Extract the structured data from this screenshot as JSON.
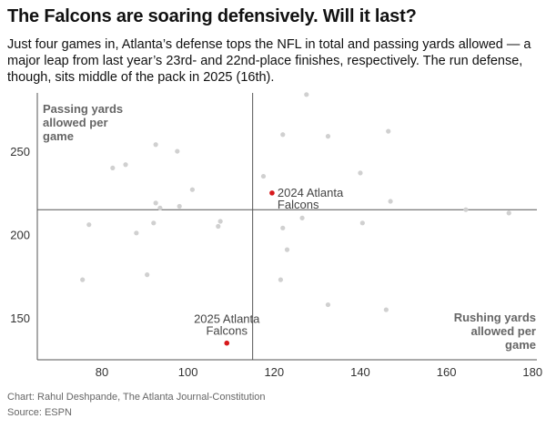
{
  "header": {
    "title": "The Falcons are soaring defensively. Will it last?",
    "subtitle": "Just four games in, Atlanta’s defense tops the NFL in total and passing yards allowed — a major leap from last year’s 23rd- and 22nd-place finishes, respectively. The run defense, though, sits middle of the pack in 2025 (16th)."
  },
  "footer": {
    "credit": "Chart: Rahul Deshpande, The Atlanta Journal-Constitution",
    "source": "Source: ESPN"
  },
  "chart_data": {
    "type": "scatter",
    "xlabel": "Rushing yards allowed per game",
    "ylabel": "Passing yards allowed per game",
    "xlabel_lines": [
      "Rushing yards",
      "allowed per",
      "game"
    ],
    "ylabel_lines": [
      "Passing yards",
      "allowed per",
      "game"
    ],
    "xlim": [
      65,
      181
    ],
    "ylim": [
      125,
      285
    ],
    "x_ticks": [
      80,
      100,
      120,
      140,
      160,
      180
    ],
    "y_ticks": [
      150,
      200,
      250
    ],
    "reference_lines": {
      "x": 115,
      "y": 215
    },
    "grid": false,
    "colors": {
      "point": "#d0d0d0",
      "highlight": "#d7191c",
      "axis": "#555555"
    },
    "points": [
      [
        75.5,
        173
      ],
      [
        77,
        206
      ],
      [
        82.5,
        240
      ],
      [
        85.5,
        242
      ],
      [
        88,
        201
      ],
      [
        90.5,
        176
      ],
      [
        92,
        207
      ],
      [
        92.5,
        219
      ],
      [
        92.5,
        254
      ],
      [
        93.5,
        216
      ],
      [
        97.5,
        250
      ],
      [
        98,
        217
      ],
      [
        101,
        227
      ],
      [
        107,
        205
      ],
      [
        107.5,
        208
      ],
      [
        117.5,
        235
      ],
      [
        121.5,
        173
      ],
      [
        122,
        260
      ],
      [
        122,
        204
      ],
      [
        123,
        191
      ],
      [
        126.5,
        210
      ],
      [
        127.5,
        284
      ],
      [
        132.5,
        259
      ],
      [
        132.5,
        158
      ],
      [
        140,
        237
      ],
      [
        140.5,
        207
      ],
      [
        146,
        155
      ],
      [
        146.5,
        262
      ],
      [
        147,
        220
      ],
      [
        164.5,
        215
      ],
      [
        174.5,
        213
      ]
    ],
    "highlights": [
      {
        "label_lines": [
          "2024 Atlanta",
          "Falcons"
        ],
        "x": 119.5,
        "y": 225
      },
      {
        "label_lines": [
          "2025 Atlanta",
          "Falcons"
        ],
        "x": 109,
        "y": 135
      }
    ]
  }
}
